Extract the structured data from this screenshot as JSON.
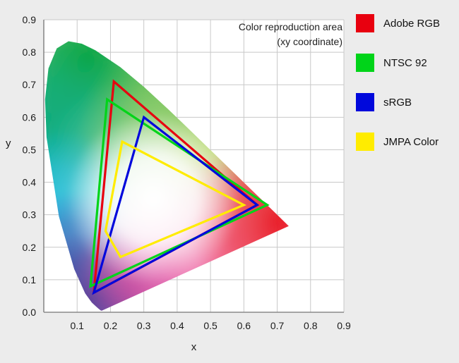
{
  "page": {
    "background": "#ececec"
  },
  "chart_data": {
    "type": "area",
    "title": "Color reproduction area",
    "subtitle": "(xy coordinate)",
    "xlabel": "x",
    "ylabel": "y",
    "xlim": [
      0,
      0.9
    ],
    "ylim": [
      0,
      0.9
    ],
    "grid": true,
    "legend_position": "right",
    "x_ticks": [
      "0.1",
      "0.2",
      "0.3",
      "0.4",
      "0.5",
      "0.6",
      "0.7",
      "0.8",
      "0.9"
    ],
    "y_ticks": [
      "0.0",
      "0.1",
      "0.2",
      "0.3",
      "0.4",
      "0.5",
      "0.6",
      "0.7",
      "0.8",
      "0.9"
    ],
    "colors": {
      "plot_bg": "#ffffff",
      "grid": "#c8c8c8",
      "axis": "#8a8a8a",
      "text": "#1a1a1a"
    },
    "series": [
      {
        "name": "Adobe RGB",
        "color": "#e8000f",
        "vertices": [
          [
            0.21,
            0.71
          ],
          [
            0.64,
            0.33
          ],
          [
            0.15,
            0.06
          ]
        ]
      },
      {
        "name": "NTSC 92",
        "color": "#00d419",
        "vertices": [
          [
            0.19,
            0.655
          ],
          [
            0.67,
            0.33
          ],
          [
            0.14,
            0.08
          ]
        ]
      },
      {
        "name": "sRGB",
        "color": "#0008dc",
        "vertices": [
          [
            0.3,
            0.6
          ],
          [
            0.64,
            0.33
          ],
          [
            0.15,
            0.06
          ]
        ]
      },
      {
        "name": "JMPA Color",
        "color": "#ffec00",
        "vertices": [
          [
            0.235,
            0.525
          ],
          [
            0.6,
            0.33
          ],
          [
            0.23,
            0.17
          ],
          [
            0.185,
            0.25
          ]
        ]
      }
    ],
    "spectral_locus": [
      [
        0.1741,
        0.005
      ],
      [
        0.1714,
        0.0051
      ],
      [
        0.1689,
        0.0069
      ],
      [
        0.1644,
        0.0109
      ],
      [
        0.1566,
        0.0177
      ],
      [
        0.144,
        0.0297
      ],
      [
        0.1241,
        0.0578
      ],
      [
        0.0913,
        0.1327
      ],
      [
        0.0454,
        0.295
      ],
      [
        0.0082,
        0.5384
      ],
      [
        0.0039,
        0.6548
      ],
      [
        0.0139,
        0.7502
      ],
      [
        0.0389,
        0.812
      ],
      [
        0.0743,
        0.8338
      ],
      [
        0.1142,
        0.8262
      ],
      [
        0.1547,
        0.8059
      ],
      [
        0.2296,
        0.7543
      ],
      [
        0.3016,
        0.6923
      ],
      [
        0.3731,
        0.6245
      ],
      [
        0.4441,
        0.5547
      ],
      [
        0.5125,
        0.4866
      ],
      [
        0.5752,
        0.4242
      ],
      [
        0.627,
        0.3725
      ],
      [
        0.6658,
        0.334
      ],
      [
        0.6915,
        0.3083
      ],
      [
        0.7079,
        0.292
      ],
      [
        0.719,
        0.2809
      ],
      [
        0.726,
        0.274
      ],
      [
        0.7347,
        0.2653
      ]
    ],
    "fill_blobs": [
      {
        "cx": 0.13,
        "cy": 0.78,
        "r": 0.55,
        "color": "#00a13a"
      },
      {
        "cx": 0.04,
        "cy": 0.52,
        "r": 0.3,
        "color": "#00a87e"
      },
      {
        "cx": 0.4,
        "cy": 0.55,
        "r": 0.3,
        "color": "#7dc242"
      },
      {
        "cx": 0.55,
        "cy": 0.42,
        "r": 0.22,
        "color": "#b0cf3a"
      },
      {
        "cx": 0.03,
        "cy": 0.3,
        "r": 0.26,
        "color": "#00b5e2"
      },
      {
        "cx": 0.1,
        "cy": 0.15,
        "r": 0.22,
        "color": "#1b46a8"
      },
      {
        "cx": 0.14,
        "cy": 0.05,
        "r": 0.2,
        "color": "#2e3192"
      },
      {
        "cx": 0.25,
        "cy": 0.09,
        "r": 0.18,
        "color": "#7f2b8f"
      },
      {
        "cx": 0.37,
        "cy": 0.16,
        "r": 0.24,
        "color": "#e0218a"
      },
      {
        "cx": 0.55,
        "cy": 0.25,
        "r": 0.24,
        "color": "#ee4d8b"
      },
      {
        "cx": 0.7,
        "cy": 0.28,
        "r": 0.27,
        "color": "#e8131d"
      },
      {
        "cx": 0.32,
        "cy": 0.33,
        "r": 0.4,
        "color": "#ffffff",
        "stops": [
          [
            0,
            0.55
          ],
          [
            1,
            0
          ]
        ]
      },
      {
        "cx": 0.33,
        "cy": 0.35,
        "r": 0.26,
        "color": "#ffffff",
        "stops": [
          [
            0,
            1
          ],
          [
            0.5,
            0.85
          ],
          [
            1,
            0
          ]
        ]
      }
    ]
  }
}
